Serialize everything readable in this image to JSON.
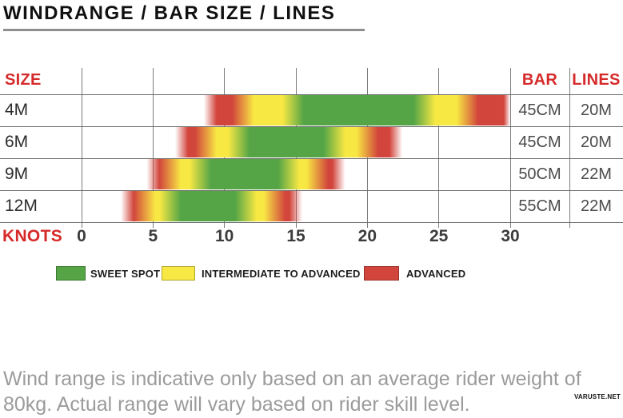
{
  "title": "WINDRANGE / BAR SIZE / LINES",
  "table": {
    "size_header": "SIZE",
    "bar_header": "BAR",
    "lines_header": "LINES",
    "knots_label": "KNOTS"
  },
  "chart_data": {
    "type": "bar",
    "orientation": "horizontal",
    "title": "WINDRANGE / BAR SIZE / LINES",
    "xlabel": "KNOTS",
    "xlim": [
      0,
      30
    ],
    "xticks": [
      0,
      5,
      10,
      15,
      20,
      25,
      30
    ],
    "grid": true,
    "legend_position": "bottom",
    "zones": [
      {
        "id": "sweet",
        "label": "SWEET SPOT",
        "color": "#55a546"
      },
      {
        "id": "intermediate",
        "label": "INTERMEDIATE TO ADVANCED",
        "color": "#f8e843"
      },
      {
        "id": "advanced",
        "label": "ADVANCED",
        "color": "#d2453c"
      }
    ],
    "rows": [
      {
        "size": "4M",
        "bar": "45CM",
        "lines": "20M",
        "segments": [
          {
            "zone": "advanced",
            "from": 9.0,
            "to": 11.3
          },
          {
            "zone": "intermediate",
            "from": 11.3,
            "to": 14.8
          },
          {
            "zone": "sweet",
            "from": 14.8,
            "to": 24.0
          },
          {
            "zone": "intermediate",
            "from": 24.0,
            "to": 27.0
          },
          {
            "zone": "advanced",
            "from": 27.0,
            "to": 30.0
          }
        ]
      },
      {
        "size": "6M",
        "bar": "45CM",
        "lines": "20M",
        "segments": [
          {
            "zone": "advanced",
            "from": 7.0,
            "to": 8.7
          },
          {
            "zone": "intermediate",
            "from": 8.7,
            "to": 11.0
          },
          {
            "zone": "sweet",
            "from": 11.0,
            "to": 17.7
          },
          {
            "zone": "intermediate",
            "from": 17.7,
            "to": 20.0
          },
          {
            "zone": "advanced",
            "from": 20.0,
            "to": 22.0
          }
        ]
      },
      {
        "size": "9M",
        "bar": "50CM",
        "lines": "22M",
        "segments": [
          {
            "zone": "advanced",
            "from": 5.0,
            "to": 6.2
          },
          {
            "zone": "intermediate",
            "from": 6.2,
            "to": 8.3
          },
          {
            "zone": "sweet",
            "from": 8.3,
            "to": 14.5
          },
          {
            "zone": "intermediate",
            "from": 14.5,
            "to": 16.5
          },
          {
            "zone": "advanced",
            "from": 16.5,
            "to": 18.0
          }
        ]
      },
      {
        "size": "12M",
        "bar": "55CM",
        "lines": "22M",
        "segments": [
          {
            "zone": "advanced",
            "from": 3.2,
            "to": 4.4
          },
          {
            "zone": "intermediate",
            "from": 4.4,
            "to": 6.2
          },
          {
            "zone": "sweet",
            "from": 6.2,
            "to": 11.5
          },
          {
            "zone": "intermediate",
            "from": 11.5,
            "to": 13.5
          },
          {
            "zone": "advanced",
            "from": 13.5,
            "to": 15.0
          }
        ]
      }
    ]
  },
  "legend": [
    {
      "label": "SWEET SPOT",
      "zone": "sweet"
    },
    {
      "label": "INTERMEDIATE TO ADVANCED",
      "zone": "intermediate"
    },
    {
      "label": "ADVANCED",
      "zone": "advanced"
    }
  ],
  "footer": "Wind range is indicative only based on an average rider weight of 80kg. Actual range will vary based on rider skill level.",
  "watermark": "VARUSTE.NET"
}
